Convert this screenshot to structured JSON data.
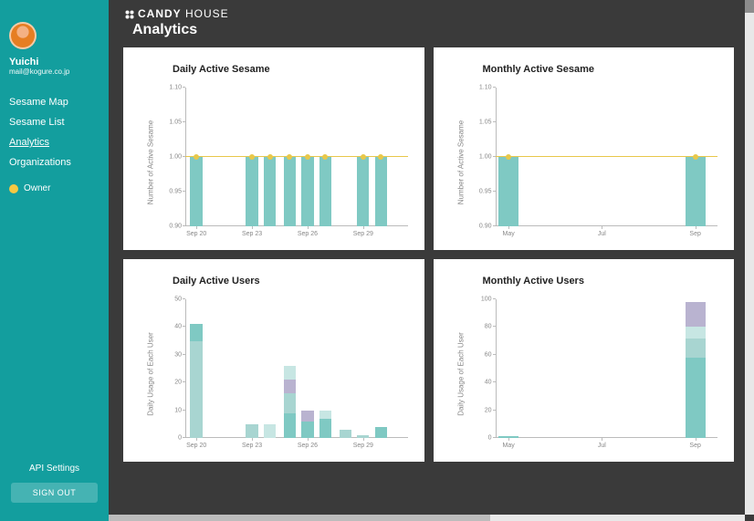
{
  "sidebar": {
    "username": "Yuichi",
    "email": "mail@kogure.co.jp",
    "nav": [
      {
        "label": "Sesame Map",
        "active": false
      },
      {
        "label": "Sesame List",
        "active": false
      },
      {
        "label": "Analytics",
        "active": true
      },
      {
        "label": "Organizations",
        "active": false
      }
    ],
    "role_label": "Owner",
    "api_label": "API Settings",
    "signout_label": "SIGN OUT"
  },
  "brand": {
    "prefix": "CANDY",
    "suffix": "HOUSE"
  },
  "page_title": "Analytics",
  "palette": {
    "bar_primary": "#7fc9c3",
    "bar_primary_light": "#bfe2df",
    "marker": "#e8c84a",
    "marker_line": "#e8c84a",
    "stack1": "#7fc9c3",
    "stack2": "#a8d5d1",
    "stack3": "#b9b3d0",
    "stack4": "#c7e6e3"
  },
  "charts": {
    "daily_sesame": {
      "title": "Daily Active Sesame",
      "y_title": "Number of Active Sesame",
      "ylim": [
        0.9,
        1.1
      ],
      "yticks": [
        0.9,
        0.95,
        1.0,
        1.05,
        1.1
      ],
      "ylabels": [
        "0.90",
        "0.95",
        "1.00",
        "1.05",
        "1.10"
      ],
      "xticks_pos": [
        0.05,
        0.3,
        0.55,
        0.8
      ],
      "xticks_label": [
        "Sep 20",
        "Sep 23",
        "Sep 26",
        "Sep 29"
      ],
      "bars_x": [
        0.05,
        0.3,
        0.38,
        0.47,
        0.55,
        0.63,
        0.8,
        0.88
      ],
      "bars_v": [
        1.0,
        1.0,
        1.0,
        1.0,
        1.0,
        1.0,
        1.0,
        1.0
      ],
      "bar_w": 0.055,
      "marker_line_y": 1.0
    },
    "monthly_sesame": {
      "title": "Monthly Active Sesame",
      "y_title": "Number of Active Sesame",
      "ylim": [
        0.9,
        1.1
      ],
      "yticks": [
        0.9,
        0.95,
        1.0,
        1.05,
        1.1
      ],
      "ylabels": [
        "0.90",
        "0.95",
        "1.00",
        "1.05",
        "1.10"
      ],
      "xticks_pos": [
        0.06,
        0.48,
        0.9
      ],
      "xticks_label": [
        "May",
        "Jul",
        "Sep"
      ],
      "bars_x": [
        0.06,
        0.9
      ],
      "bars_v": [
        1.0,
        1.0
      ],
      "bar_w": 0.09,
      "marker_line_y": 1.0
    },
    "daily_users": {
      "title": "Daily Active Users",
      "y_title": "Daily Usage of Each User",
      "ylim": [
        0,
        50
      ],
      "yticks": [
        0,
        10,
        20,
        30,
        40,
        50
      ],
      "ylabels": [
        "0",
        "10",
        "20",
        "30",
        "40",
        "50"
      ],
      "xticks_pos": [
        0.05,
        0.3,
        0.55,
        0.8
      ],
      "xticks_label": [
        "Sep 20",
        "Sep 23",
        "Sep 26",
        "Sep 29"
      ],
      "stacks": [
        {
          "x": 0.05,
          "segs": [
            {
              "v": 35,
              "c": "stack2"
            },
            {
              "v": 6,
              "c": "stack1"
            }
          ]
        },
        {
          "x": 0.3,
          "segs": [
            {
              "v": 5,
              "c": "stack2"
            }
          ]
        },
        {
          "x": 0.38,
          "segs": [
            {
              "v": 5,
              "c": "stack4"
            }
          ]
        },
        {
          "x": 0.47,
          "segs": [
            {
              "v": 9,
              "c": "stack1"
            },
            {
              "v": 7,
              "c": "stack2"
            },
            {
              "v": 5,
              "c": "stack3"
            },
            {
              "v": 5,
              "c": "stack4"
            }
          ]
        },
        {
          "x": 0.55,
          "segs": [
            {
              "v": 6,
              "c": "stack1"
            },
            {
              "v": 4,
              "c": "stack3"
            }
          ]
        },
        {
          "x": 0.63,
          "segs": [
            {
              "v": 7,
              "c": "stack1"
            },
            {
              "v": 3,
              "c": "stack4"
            }
          ]
        },
        {
          "x": 0.72,
          "segs": [
            {
              "v": 3,
              "c": "stack2"
            }
          ]
        },
        {
          "x": 0.8,
          "segs": [
            {
              "v": 1,
              "c": "stack2"
            }
          ]
        },
        {
          "x": 0.88,
          "segs": [
            {
              "v": 4,
              "c": "stack1"
            }
          ]
        }
      ],
      "bar_w": 0.055
    },
    "monthly_users": {
      "title": "Monthly Active Users",
      "y_title": "Daily Usage of Each User",
      "ylim": [
        0,
        100
      ],
      "yticks": [
        0,
        20,
        40,
        60,
        80,
        100
      ],
      "ylabels": [
        "0",
        "20",
        "40",
        "60",
        "80",
        "100"
      ],
      "xticks_pos": [
        0.06,
        0.48,
        0.9
      ],
      "xticks_label": [
        "May",
        "Jul",
        "Sep"
      ],
      "stacks": [
        {
          "x": 0.06,
          "segs": [
            {
              "v": 1,
              "c": "stack1"
            }
          ]
        },
        {
          "x": 0.9,
          "segs": [
            {
              "v": 58,
              "c": "stack1"
            },
            {
              "v": 14,
              "c": "stack2"
            },
            {
              "v": 8,
              "c": "stack4"
            },
            {
              "v": 18,
              "c": "stack3"
            }
          ]
        }
      ],
      "bar_w": 0.09
    }
  }
}
